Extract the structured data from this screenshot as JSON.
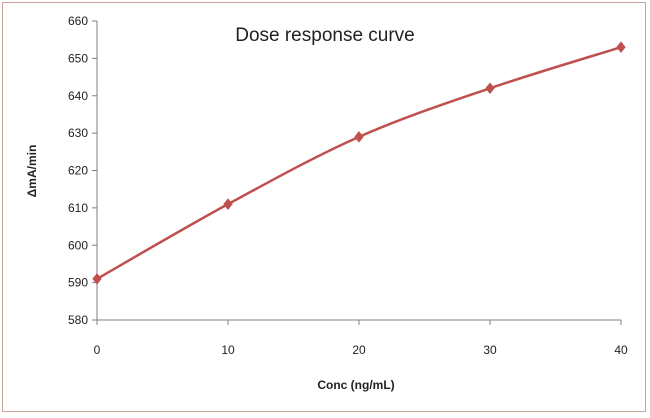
{
  "chart_data": {
    "type": "line",
    "title": "Dose response curve",
    "xlabel": "Conc (ng/mL)",
    "ylabel": "ΔmA/min",
    "x": [
      0,
      10,
      20,
      30,
      40
    ],
    "series": [
      {
        "values": [
          591,
          611,
          629,
          642,
          653
        ]
      }
    ],
    "xlim": [
      0,
      40
    ],
    "ylim": [
      580,
      660
    ],
    "xticks": [
      0,
      10,
      20,
      30,
      40
    ],
    "yticks": [
      580,
      590,
      600,
      610,
      620,
      630,
      640,
      650,
      660
    ],
    "smooth": true,
    "marker": "diamond",
    "grid": false,
    "legend": "none",
    "colors": {
      "line": "#c0504d",
      "marker": "#c0504d",
      "axis": "#7f7f7f",
      "frame": "#c9a39b"
    }
  }
}
